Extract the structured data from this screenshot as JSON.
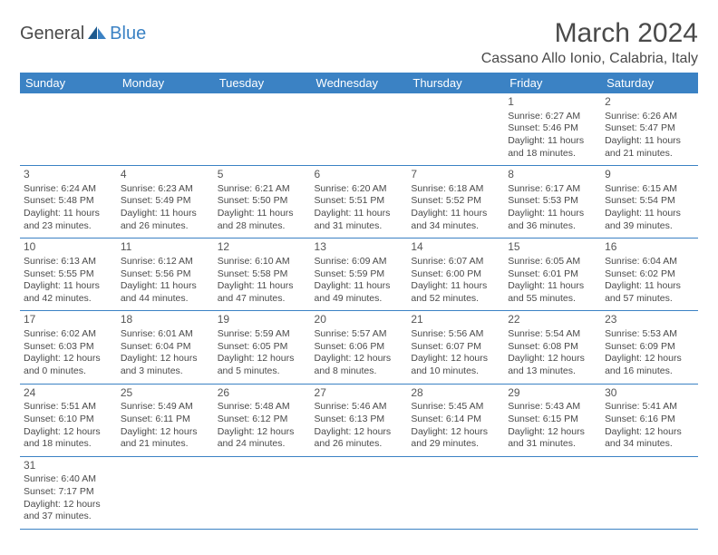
{
  "logo": {
    "text1": "General",
    "text2": "Blue"
  },
  "title": "March 2024",
  "location": "Cassano Allo Ionio, Calabria, Italy",
  "styling": {
    "header_bg": "#3b82c4",
    "header_text": "#ffffff",
    "body_text": "#4a4a4a",
    "border_color": "#3b82c4",
    "background": "#ffffff",
    "month_fontsize": 30,
    "location_fontsize": 16,
    "header_fontsize": 13,
    "cell_fontsize": 10.5
  },
  "columns": [
    "Sunday",
    "Monday",
    "Tuesday",
    "Wednesday",
    "Thursday",
    "Friday",
    "Saturday"
  ],
  "weeks": [
    [
      null,
      null,
      null,
      null,
      null,
      {
        "d": "1",
        "sr": "Sunrise: 6:27 AM",
        "ss": "Sunset: 5:46 PM",
        "dl1": "Daylight: 11 hours",
        "dl2": "and 18 minutes."
      },
      {
        "d": "2",
        "sr": "Sunrise: 6:26 AM",
        "ss": "Sunset: 5:47 PM",
        "dl1": "Daylight: 11 hours",
        "dl2": "and 21 minutes."
      }
    ],
    [
      {
        "d": "3",
        "sr": "Sunrise: 6:24 AM",
        "ss": "Sunset: 5:48 PM",
        "dl1": "Daylight: 11 hours",
        "dl2": "and 23 minutes."
      },
      {
        "d": "4",
        "sr": "Sunrise: 6:23 AM",
        "ss": "Sunset: 5:49 PM",
        "dl1": "Daylight: 11 hours",
        "dl2": "and 26 minutes."
      },
      {
        "d": "5",
        "sr": "Sunrise: 6:21 AM",
        "ss": "Sunset: 5:50 PM",
        "dl1": "Daylight: 11 hours",
        "dl2": "and 28 minutes."
      },
      {
        "d": "6",
        "sr": "Sunrise: 6:20 AM",
        "ss": "Sunset: 5:51 PM",
        "dl1": "Daylight: 11 hours",
        "dl2": "and 31 minutes."
      },
      {
        "d": "7",
        "sr": "Sunrise: 6:18 AM",
        "ss": "Sunset: 5:52 PM",
        "dl1": "Daylight: 11 hours",
        "dl2": "and 34 minutes."
      },
      {
        "d": "8",
        "sr": "Sunrise: 6:17 AM",
        "ss": "Sunset: 5:53 PM",
        "dl1": "Daylight: 11 hours",
        "dl2": "and 36 minutes."
      },
      {
        "d": "9",
        "sr": "Sunrise: 6:15 AM",
        "ss": "Sunset: 5:54 PM",
        "dl1": "Daylight: 11 hours",
        "dl2": "and 39 minutes."
      }
    ],
    [
      {
        "d": "10",
        "sr": "Sunrise: 6:13 AM",
        "ss": "Sunset: 5:55 PM",
        "dl1": "Daylight: 11 hours",
        "dl2": "and 42 minutes."
      },
      {
        "d": "11",
        "sr": "Sunrise: 6:12 AM",
        "ss": "Sunset: 5:56 PM",
        "dl1": "Daylight: 11 hours",
        "dl2": "and 44 minutes."
      },
      {
        "d": "12",
        "sr": "Sunrise: 6:10 AM",
        "ss": "Sunset: 5:58 PM",
        "dl1": "Daylight: 11 hours",
        "dl2": "and 47 minutes."
      },
      {
        "d": "13",
        "sr": "Sunrise: 6:09 AM",
        "ss": "Sunset: 5:59 PM",
        "dl1": "Daylight: 11 hours",
        "dl2": "and 49 minutes."
      },
      {
        "d": "14",
        "sr": "Sunrise: 6:07 AM",
        "ss": "Sunset: 6:00 PM",
        "dl1": "Daylight: 11 hours",
        "dl2": "and 52 minutes."
      },
      {
        "d": "15",
        "sr": "Sunrise: 6:05 AM",
        "ss": "Sunset: 6:01 PM",
        "dl1": "Daylight: 11 hours",
        "dl2": "and 55 minutes."
      },
      {
        "d": "16",
        "sr": "Sunrise: 6:04 AM",
        "ss": "Sunset: 6:02 PM",
        "dl1": "Daylight: 11 hours",
        "dl2": "and 57 minutes."
      }
    ],
    [
      {
        "d": "17",
        "sr": "Sunrise: 6:02 AM",
        "ss": "Sunset: 6:03 PM",
        "dl1": "Daylight: 12 hours",
        "dl2": "and 0 minutes."
      },
      {
        "d": "18",
        "sr": "Sunrise: 6:01 AM",
        "ss": "Sunset: 6:04 PM",
        "dl1": "Daylight: 12 hours",
        "dl2": "and 3 minutes."
      },
      {
        "d": "19",
        "sr": "Sunrise: 5:59 AM",
        "ss": "Sunset: 6:05 PM",
        "dl1": "Daylight: 12 hours",
        "dl2": "and 5 minutes."
      },
      {
        "d": "20",
        "sr": "Sunrise: 5:57 AM",
        "ss": "Sunset: 6:06 PM",
        "dl1": "Daylight: 12 hours",
        "dl2": "and 8 minutes."
      },
      {
        "d": "21",
        "sr": "Sunrise: 5:56 AM",
        "ss": "Sunset: 6:07 PM",
        "dl1": "Daylight: 12 hours",
        "dl2": "and 10 minutes."
      },
      {
        "d": "22",
        "sr": "Sunrise: 5:54 AM",
        "ss": "Sunset: 6:08 PM",
        "dl1": "Daylight: 12 hours",
        "dl2": "and 13 minutes."
      },
      {
        "d": "23",
        "sr": "Sunrise: 5:53 AM",
        "ss": "Sunset: 6:09 PM",
        "dl1": "Daylight: 12 hours",
        "dl2": "and 16 minutes."
      }
    ],
    [
      {
        "d": "24",
        "sr": "Sunrise: 5:51 AM",
        "ss": "Sunset: 6:10 PM",
        "dl1": "Daylight: 12 hours",
        "dl2": "and 18 minutes."
      },
      {
        "d": "25",
        "sr": "Sunrise: 5:49 AM",
        "ss": "Sunset: 6:11 PM",
        "dl1": "Daylight: 12 hours",
        "dl2": "and 21 minutes."
      },
      {
        "d": "26",
        "sr": "Sunrise: 5:48 AM",
        "ss": "Sunset: 6:12 PM",
        "dl1": "Daylight: 12 hours",
        "dl2": "and 24 minutes."
      },
      {
        "d": "27",
        "sr": "Sunrise: 5:46 AM",
        "ss": "Sunset: 6:13 PM",
        "dl1": "Daylight: 12 hours",
        "dl2": "and 26 minutes."
      },
      {
        "d": "28",
        "sr": "Sunrise: 5:45 AM",
        "ss": "Sunset: 6:14 PM",
        "dl1": "Daylight: 12 hours",
        "dl2": "and 29 minutes."
      },
      {
        "d": "29",
        "sr": "Sunrise: 5:43 AM",
        "ss": "Sunset: 6:15 PM",
        "dl1": "Daylight: 12 hours",
        "dl2": "and 31 minutes."
      },
      {
        "d": "30",
        "sr": "Sunrise: 5:41 AM",
        "ss": "Sunset: 6:16 PM",
        "dl1": "Daylight: 12 hours",
        "dl2": "and 34 minutes."
      }
    ],
    [
      {
        "d": "31",
        "sr": "Sunrise: 6:40 AM",
        "ss": "Sunset: 7:17 PM",
        "dl1": "Daylight: 12 hours",
        "dl2": "and 37 minutes."
      },
      null,
      null,
      null,
      null,
      null,
      null
    ]
  ]
}
